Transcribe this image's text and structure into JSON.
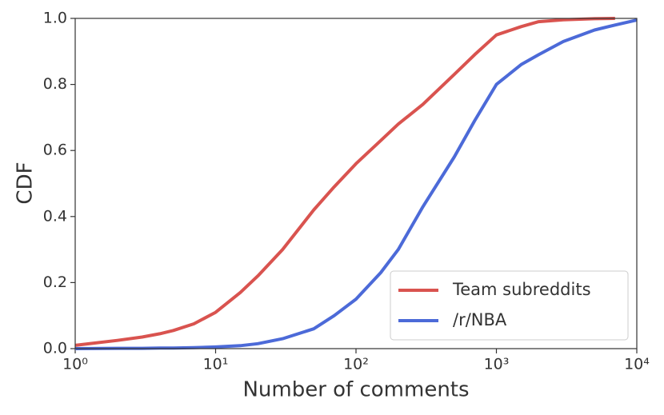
{
  "chart_data": {
    "type": "line",
    "xlabel": "Number of comments",
    "ylabel": "CDF",
    "xscale": "log",
    "xlim": [
      1,
      10000
    ],
    "xticks": [
      {
        "value": 1,
        "label": "10⁰"
      },
      {
        "value": 10,
        "label": "10¹"
      },
      {
        "value": 100,
        "label": "10²"
      },
      {
        "value": 1000,
        "label": "10³"
      },
      {
        "value": 10000,
        "label": "10⁴"
      }
    ],
    "ylim": [
      0,
      1
    ],
    "yticks": [
      {
        "value": 0,
        "label": "0.0"
      },
      0.2,
      0.4,
      0.6,
      0.8,
      {
        "value": 1,
        "label": "1.0"
      }
    ],
    "legend": "lower right",
    "x": [
      1,
      2,
      3,
      4,
      5,
      7,
      10,
      15,
      20,
      30,
      50,
      70,
      100,
      150,
      200,
      300,
      500,
      700,
      1000,
      1500,
      2000,
      3000,
      5000,
      7000,
      10000
    ],
    "series": [
      {
        "name": "Team subreddits",
        "color": "#d9534f",
        "values": [
          0.01,
          0.025,
          0.035,
          0.045,
          0.055,
          0.075,
          0.11,
          0.17,
          0.22,
          0.3,
          0.42,
          0.49,
          0.56,
          0.63,
          0.68,
          0.74,
          0.83,
          0.89,
          0.95,
          0.975,
          0.99,
          0.996,
          0.999,
          1.0,
          null
        ]
      },
      {
        "name": "/r/NBA",
        "color": "#4c6ad8",
        "values": [
          0,
          0.001,
          0.001,
          0.002,
          0.002,
          0.003,
          0.005,
          0.009,
          0.015,
          0.03,
          0.06,
          0.1,
          0.15,
          0.23,
          0.3,
          0.43,
          0.58,
          0.69,
          0.8,
          0.86,
          0.89,
          0.93,
          0.965,
          0.98,
          0.995
        ]
      }
    ]
  }
}
